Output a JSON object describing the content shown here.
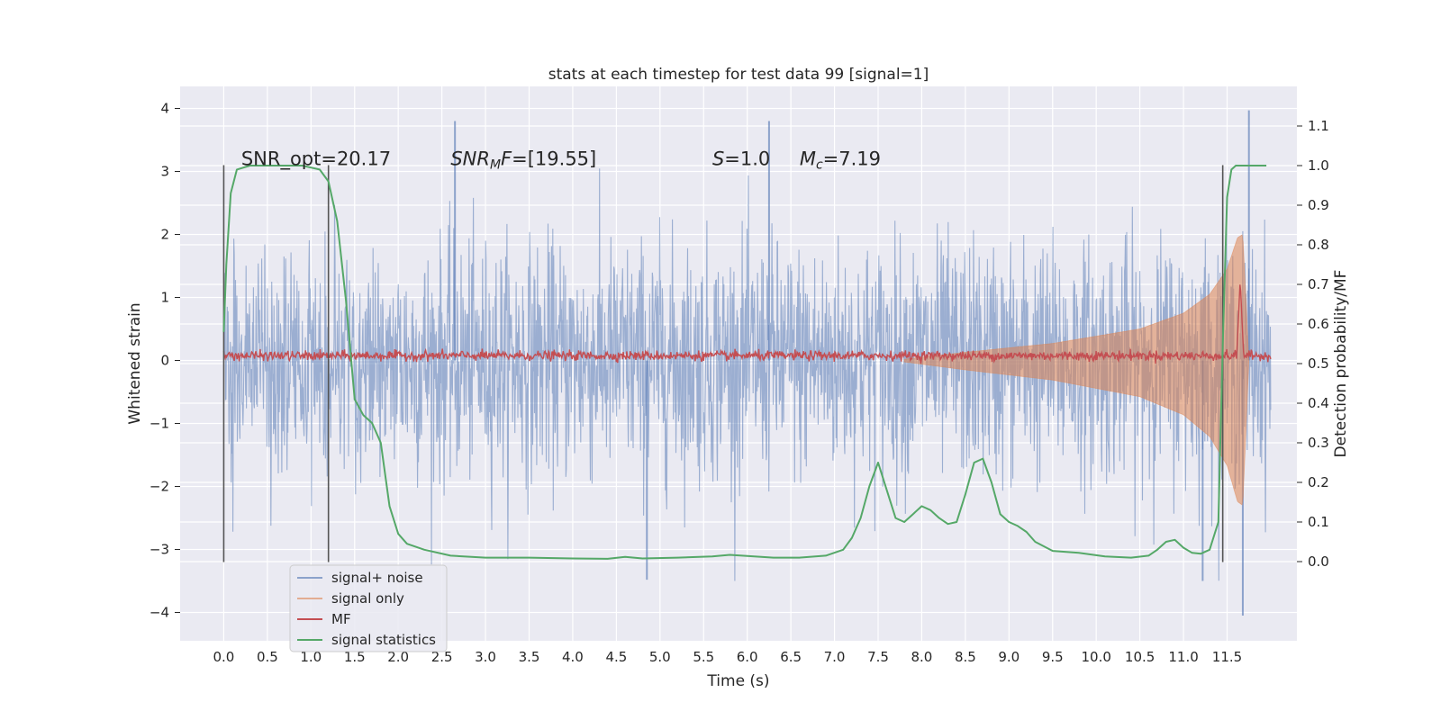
{
  "chart_data": {
    "type": "line",
    "title": "stats at each timestep for test data 99 [signal=1]",
    "xlabel": "Time (s)",
    "ylabel": "Whitened strain",
    "y2label": "Detection probability/MF",
    "xlim": [
      -0.5,
      12.3
    ],
    "ylim": [
      -4.45,
      4.35
    ],
    "y2lim": [
      -0.2,
      1.2
    ],
    "xticks": [
      0.0,
      0.5,
      1.0,
      1.5,
      2.0,
      2.5,
      3.0,
      3.5,
      4.0,
      4.5,
      5.0,
      5.5,
      6.0,
      6.5,
      7.0,
      7.5,
      8.0,
      8.5,
      9.0,
      9.5,
      10.0,
      10.5,
      11.0,
      11.5
    ],
    "xtick_labels": [
      "0.0",
      "0.5",
      "1.0",
      "1.5",
      "2.0",
      "2.5",
      "3.0",
      "3.5",
      "4.0",
      "4.5",
      "5.0",
      "5.5",
      "6.0",
      "6.5",
      "7.0",
      "7.5",
      "8.0",
      "8.5",
      "9.0",
      "9.5",
      "10.0",
      "10.5",
      "11.0",
      "11.5"
    ],
    "yticks": [
      -4,
      -3,
      -2,
      -1,
      0,
      1,
      2,
      3,
      4
    ],
    "ytick_labels": [
      "−4",
      "−3",
      "−2",
      "−1",
      "0",
      "1",
      "2",
      "3",
      "4"
    ],
    "y2ticks": [
      0.0,
      0.1,
      0.2,
      0.3,
      0.4,
      0.5,
      0.6,
      0.7,
      0.8,
      0.9,
      1.0,
      1.1
    ],
    "y2tick_labels": [
      "0.0",
      "0.1",
      "0.2",
      "0.3",
      "0.4",
      "0.5",
      "0.6",
      "0.7",
      "0.8",
      "0.9",
      "1.0",
      "1.1"
    ],
    "grid": true,
    "legend_placement": "lower-left",
    "annotations": [
      {
        "text": "SNR_opt=20.17",
        "x": 0.2,
        "y": 3.1
      },
      {
        "text": "SNRMF=[19.55]",
        "x": 2.6,
        "y": 3.1
      },
      {
        "text": "S=1.0",
        "x": 5.6,
        "y": 3.1
      },
      {
        "text": "Mc=7.19",
        "x": 6.6,
        "y": 3.1
      }
    ],
    "vlines": [
      0.0,
      1.2,
      11.45
    ],
    "vline_range": [
      -3.2,
      3.1
    ],
    "series": [
      {
        "name": "signal+ noise",
        "axis": "left",
        "kind": "noise",
        "color": "#4c72b0",
        "x_range": [
          0.0,
          12.0
        ],
        "typical_amplitude": 1.5,
        "peaks": [
          {
            "x": 2.65,
            "y": 3.8
          },
          {
            "x": 6.25,
            "y": 3.8
          },
          {
            "x": 11.75,
            "y": 3.97
          },
          {
            "x": 11.68,
            "y": -4.05
          },
          {
            "x": 4.85,
            "y": -3.48
          },
          {
            "x": 11.22,
            "y": -3.5
          }
        ]
      },
      {
        "name": "signal only",
        "axis": "left",
        "kind": "chirp",
        "color": "#dd8452",
        "x_range": [
          7.8,
          11.7
        ],
        "envelope": [
          [
            7.8,
            0.02
          ],
          [
            8.5,
            0.13
          ],
          [
            9.5,
            0.27
          ],
          [
            10.5,
            0.5
          ],
          [
            11.0,
            0.75
          ],
          [
            11.3,
            1.05
          ],
          [
            11.5,
            1.45
          ],
          [
            11.62,
            1.95
          ],
          [
            11.68,
            2.0
          ],
          [
            11.75,
            0.0
          ]
        ]
      },
      {
        "name": "MF",
        "axis": "right",
        "kind": "mf",
        "color": "#c44e52",
        "x_range": [
          0.0,
          12.0
        ],
        "baseline": 0.52,
        "spike": {
          "x": 11.65,
          "y": 0.71
        }
      },
      {
        "name": "signal statistics",
        "axis": "right",
        "kind": "line",
        "color": "#55a868",
        "x": [
          0.0,
          0.03,
          0.08,
          0.15,
          0.3,
          0.6,
          0.9,
          1.0,
          1.1,
          1.2,
          1.3,
          1.4,
          1.5,
          1.6,
          1.7,
          1.8,
          1.9,
          2.0,
          2.1,
          2.3,
          2.6,
          3.0,
          3.5,
          4.0,
          4.4,
          4.6,
          4.8,
          5.2,
          5.6,
          5.8,
          6.0,
          6.3,
          6.6,
          6.9,
          7.1,
          7.2,
          7.3,
          7.4,
          7.5,
          7.6,
          7.7,
          7.8,
          7.9,
          8.0,
          8.1,
          8.2,
          8.3,
          8.4,
          8.5,
          8.6,
          8.7,
          8.8,
          8.9,
          9.0,
          9.1,
          9.2,
          9.3,
          9.5,
          9.8,
          10.1,
          10.4,
          10.6,
          10.7,
          10.8,
          10.9,
          11.0,
          11.1,
          11.2,
          11.3,
          11.4,
          11.45,
          11.5,
          11.55,
          11.6,
          11.7,
          11.8,
          11.95
        ],
        "y": [
          0.58,
          0.75,
          0.93,
          0.99,
          1.0,
          1.0,
          1.0,
          0.995,
          0.99,
          0.96,
          0.86,
          0.66,
          0.41,
          0.37,
          0.35,
          0.3,
          0.14,
          0.07,
          0.045,
          0.03,
          0.015,
          0.01,
          0.01,
          0.008,
          0.007,
          0.012,
          0.008,
          0.01,
          0.013,
          0.017,
          0.014,
          0.01,
          0.01,
          0.015,
          0.03,
          0.06,
          0.11,
          0.19,
          0.25,
          0.18,
          0.11,
          0.1,
          0.12,
          0.14,
          0.13,
          0.11,
          0.095,
          0.1,
          0.17,
          0.25,
          0.26,
          0.2,
          0.12,
          0.1,
          0.09,
          0.075,
          0.05,
          0.027,
          0.022,
          0.013,
          0.01,
          0.015,
          0.03,
          0.05,
          0.055,
          0.035,
          0.022,
          0.02,
          0.03,
          0.1,
          0.55,
          0.92,
          0.99,
          1.0,
          1.0,
          1.0,
          1.0
        ]
      }
    ]
  }
}
